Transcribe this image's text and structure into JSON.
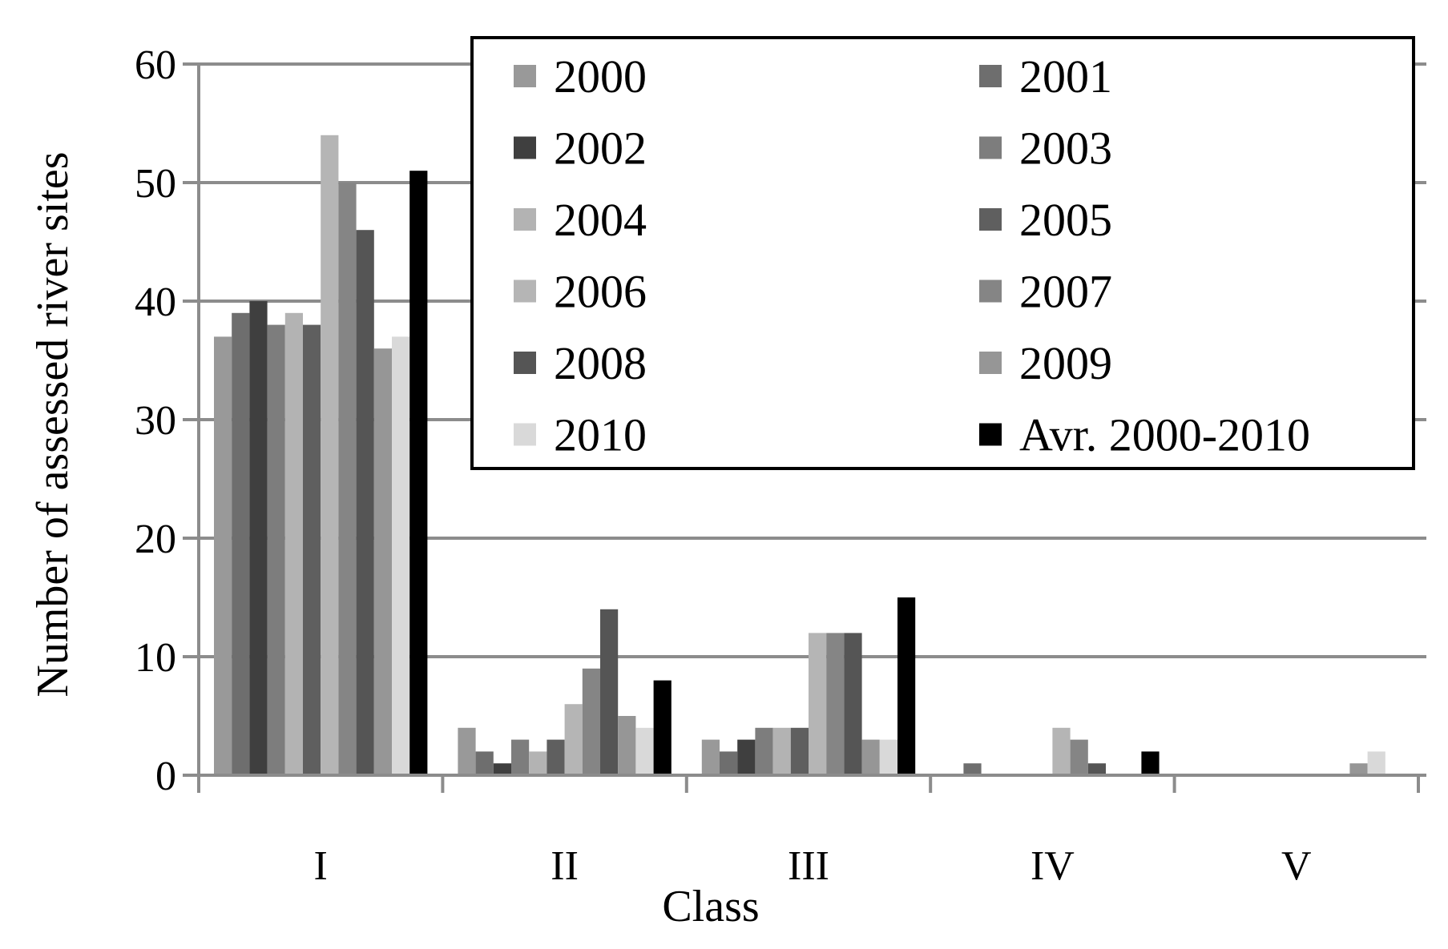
{
  "chart_data": {
    "type": "bar",
    "title": "",
    "xlabel": "Class",
    "ylabel": "Number of assessed river sites",
    "ylim": [
      0,
      60
    ],
    "yticks": [
      0,
      10,
      20,
      30,
      40,
      50,
      60
    ],
    "grid": true,
    "legend_position": "top-right",
    "categories": [
      "I",
      "II",
      "III",
      "IV",
      "V"
    ],
    "series": [
      {
        "name": "2000",
        "color": "#999999",
        "values": [
          37,
          4,
          3,
          0,
          0
        ]
      },
      {
        "name": "2001",
        "color": "#6e6e6e",
        "values": [
          39,
          2,
          2,
          1,
          0
        ]
      },
      {
        "name": "2002",
        "color": "#3f3f3f",
        "values": [
          40,
          1,
          3,
          0,
          0
        ]
      },
      {
        "name": "2003",
        "color": "#7d7d7d",
        "values": [
          38,
          3,
          4,
          0,
          0
        ]
      },
      {
        "name": "2004",
        "color": "#b3b3b3",
        "values": [
          39,
          2,
          4,
          0,
          0
        ]
      },
      {
        "name": "2005",
        "color": "#5f5f5f",
        "values": [
          38,
          3,
          4,
          0,
          0
        ]
      },
      {
        "name": "2006",
        "color": "#b5b5b5",
        "values": [
          54,
          6,
          12,
          4,
          0
        ]
      },
      {
        "name": "2007",
        "color": "#858585",
        "values": [
          50,
          9,
          12,
          3,
          0
        ]
      },
      {
        "name": "2008",
        "color": "#555555",
        "values": [
          46,
          14,
          12,
          1,
          0
        ]
      },
      {
        "name": "2009",
        "color": "#969696",
        "values": [
          36,
          5,
          3,
          0,
          1
        ]
      },
      {
        "name": "2010",
        "color": "#d9d9d9",
        "values": [
          37,
          4,
          3,
          0,
          2
        ]
      },
      {
        "name": "Avr. 2000-2010",
        "color": "#000000",
        "values": [
          51,
          8,
          15,
          2,
          0
        ]
      }
    ]
  }
}
